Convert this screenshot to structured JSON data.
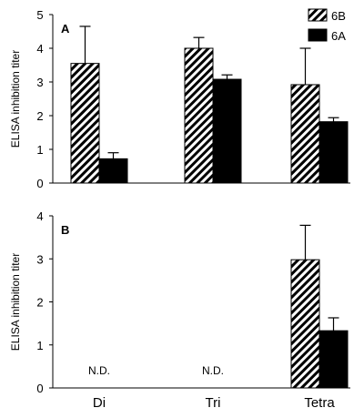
{
  "chart_data": [
    {
      "type": "bar",
      "panel": "A",
      "categories": [
        "Di",
        "Tri",
        "Tetra"
      ],
      "ylabel": "ELISA inhibition titer",
      "ylim": [
        0,
        5
      ],
      "yticks": [
        0,
        1,
        2,
        3,
        4,
        5
      ],
      "legend": {
        "position": "top-right"
      },
      "series": [
        {
          "name": "6B",
          "pattern": "hatched",
          "values": [
            3.55,
            4.0,
            2.92
          ],
          "errors": [
            1.1,
            0.32,
            1.08
          ]
        },
        {
          "name": "6A",
          "pattern": "solid",
          "color": "#000000",
          "values": [
            0.72,
            3.08,
            1.82
          ],
          "errors": [
            0.18,
            0.13,
            0.12
          ]
        }
      ],
      "annotations": []
    },
    {
      "type": "bar",
      "panel": "B",
      "categories": [
        "Di",
        "Tri",
        "Tetra"
      ],
      "ylabel": "ELISA inhibition titer",
      "ylim": [
        0,
        4
      ],
      "yticks": [
        0,
        1,
        2,
        3,
        4
      ],
      "series": [
        {
          "name": "6B",
          "pattern": "hatched",
          "values": [
            null,
            null,
            2.98
          ],
          "errors": [
            null,
            null,
            0.8
          ]
        },
        {
          "name": "6A",
          "pattern": "solid",
          "color": "#000000",
          "values": [
            null,
            null,
            1.33
          ],
          "errors": [
            null,
            null,
            0.3
          ]
        }
      ],
      "annotations": [
        {
          "category": "Di",
          "text": "N.D."
        },
        {
          "category": "Tri",
          "text": "N.D."
        }
      ]
    }
  ]
}
